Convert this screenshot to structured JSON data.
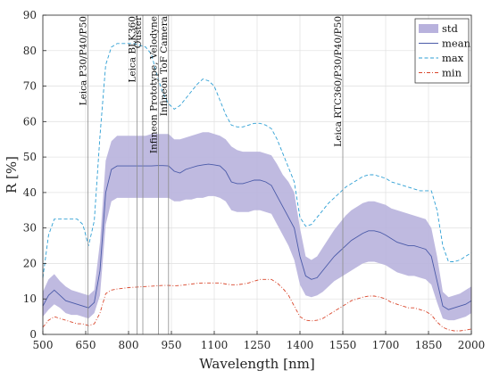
{
  "chart_data": {
    "type": "area",
    "xlabel": "Wavelength [nm]",
    "ylabel": "R [%]",
    "xlim": [
      500,
      2000
    ],
    "ylim": [
      0,
      90
    ],
    "xticks": [
      500,
      650,
      800,
      950,
      1100,
      1250,
      1400,
      1550,
      1700,
      1850,
      2000
    ],
    "yticks": [
      0,
      10,
      20,
      30,
      40,
      50,
      60,
      70,
      80,
      90
    ],
    "grid": true,
    "legend_position": "top-right",
    "legend": [
      {
        "key": "std",
        "label": "std"
      },
      {
        "key": "mean",
        "label": "mean"
      },
      {
        "key": "max",
        "label": "max"
      },
      {
        "key": "min",
        "label": "min"
      }
    ],
    "colors": {
      "std_fill": "#b8b2dd",
      "mean": "#4a5aa8",
      "max": "#2e9fd4",
      "min": "#d9452a",
      "marker_line": "#8c8c8c"
    },
    "x": [
      500,
      520,
      540,
      560,
      580,
      600,
      620,
      640,
      660,
      680,
      700,
      720,
      740,
      760,
      780,
      800,
      820,
      840,
      860,
      880,
      900,
      920,
      940,
      960,
      980,
      1000,
      1020,
      1040,
      1060,
      1080,
      1100,
      1120,
      1140,
      1160,
      1180,
      1200,
      1220,
      1240,
      1260,
      1280,
      1300,
      1320,
      1340,
      1360,
      1380,
      1400,
      1420,
      1440,
      1460,
      1480,
      1500,
      1520,
      1540,
      1560,
      1580,
      1600,
      1620,
      1640,
      1660,
      1680,
      1700,
      1720,
      1740,
      1760,
      1780,
      1800,
      1820,
      1840,
      1860,
      1880,
      1900,
      1920,
      1940,
      1960,
      1980,
      2000
    ],
    "series": [
      {
        "name": "mean",
        "values": [
          8,
          11,
          12.5,
          11,
          9.5,
          9,
          8.5,
          8,
          7.5,
          9,
          18,
          40,
          46.5,
          47.5,
          47.5,
          47.5,
          47.5,
          47.5,
          47.5,
          47.5,
          47.6,
          47.6,
          47.5,
          46,
          45.5,
          46.5,
          47,
          47.5,
          47.8,
          48,
          47.8,
          47.5,
          46,
          43,
          42.5,
          42.5,
          43,
          43.5,
          43.5,
          43,
          42,
          39,
          36,
          33,
          30,
          22,
          16.5,
          15.5,
          16,
          18,
          20,
          22,
          23.5,
          25,
          26.5,
          27.5,
          28.5,
          29.2,
          29.2,
          28.8,
          28,
          27,
          26,
          25.5,
          25,
          25,
          24.5,
          24,
          22,
          15,
          8,
          7,
          7.5,
          8,
          8.5,
          9.5
        ]
      },
      {
        "name": "std_upper",
        "values": [
          12,
          15.5,
          17,
          15,
          13.5,
          12.5,
          12,
          11.5,
          11,
          12.5,
          26,
          49,
          54.5,
          56,
          56,
          56,
          56,
          56,
          56,
          56.5,
          56.5,
          56.5,
          56.5,
          55,
          55,
          55.5,
          56,
          56.5,
          57,
          57,
          56.5,
          56,
          55,
          53,
          52,
          51.5,
          51.5,
          51.5,
          51.5,
          51,
          50.5,
          48,
          45,
          43,
          40,
          30,
          22,
          21,
          22,
          24.5,
          27,
          29.5,
          31.5,
          33.5,
          35,
          36,
          37,
          37.5,
          37.5,
          37,
          36.5,
          35.5,
          35,
          34.5,
          34,
          33.5,
          33,
          32.5,
          30,
          22,
          12,
          10.5,
          11,
          11.5,
          12.5,
          13.5
        ]
      },
      {
        "name": "std_lower",
        "values": [
          5,
          7,
          8.5,
          7.5,
          6,
          5.5,
          5.5,
          5,
          4.5,
          6,
          11,
          31,
          37.5,
          38.5,
          38.5,
          38.5,
          38.5,
          38.5,
          38.5,
          38.5,
          38.5,
          38.5,
          38.5,
          37.5,
          37.5,
          38,
          38,
          38.5,
          38.5,
          39,
          39,
          38.5,
          37.5,
          35,
          34.5,
          34.5,
          34.5,
          35,
          35,
          34.5,
          34,
          31,
          28,
          25,
          21,
          14,
          11,
          10.5,
          11,
          12,
          13.5,
          15,
          16,
          17,
          18,
          19,
          20,
          20.5,
          20.5,
          20,
          19.5,
          18.5,
          17.5,
          17,
          16.5,
          16.5,
          16,
          15.5,
          14,
          9,
          4.5,
          4,
          4,
          4.5,
          5,
          6
        ]
      },
      {
        "name": "max",
        "values": [
          16,
          28,
          32.5,
          32.5,
          32.5,
          32.5,
          32.5,
          31,
          25,
          32,
          56,
          76,
          81,
          82,
          82,
          82,
          82,
          81.5,
          81,
          79,
          73,
          68,
          65,
          63.5,
          64.5,
          66.5,
          68.5,
          70.5,
          72,
          71.5,
          70,
          66,
          62,
          59,
          58.5,
          58.5,
          59,
          59.5,
          59.5,
          59,
          58,
          55,
          51,
          47,
          43,
          33,
          30.5,
          31,
          33,
          35,
          37,
          38.5,
          40,
          41.5,
          42.5,
          43.5,
          44.5,
          45,
          45,
          44.5,
          44,
          43,
          42.5,
          42,
          41.5,
          41,
          40.5,
          40.5,
          40.5,
          35,
          25,
          20.5,
          20.5,
          21,
          22,
          23
        ]
      },
      {
        "name": "min",
        "values": [
          2,
          4,
          5,
          4.5,
          4,
          3.5,
          3,
          3,
          2.5,
          3,
          6,
          11.5,
          12.5,
          12.8,
          13,
          13.2,
          13.3,
          13.4,
          13.5,
          13.6,
          13.7,
          13.8,
          13.8,
          13.7,
          13.8,
          14,
          14.2,
          14.4,
          14.5,
          14.5,
          14.5,
          14.5,
          14.2,
          14,
          14,
          14.2,
          14.5,
          15,
          15.5,
          15.5,
          15.5,
          14.5,
          13,
          11,
          8,
          5,
          4,
          3.8,
          4,
          4.5,
          5.5,
          6.5,
          7.5,
          8.5,
          9.5,
          10,
          10.5,
          10.8,
          10.8,
          10.5,
          10,
          9,
          8.5,
          8,
          7.5,
          7.5,
          7,
          6.5,
          5.5,
          3.5,
          2,
          1.3,
          1,
          1,
          1.2,
          1.5
        ]
      }
    ],
    "markers": [
      {
        "x": 658,
        "label": "Leica P30/P40/P50"
      },
      {
        "x": 830,
        "label": "Leica BLK360"
      },
      {
        "x": 850,
        "label": "Ouster"
      },
      {
        "x": 905,
        "label": "Infineon Prototype, Velodyne"
      },
      {
        "x": 940,
        "label": "Infineon ToF Camera"
      },
      {
        "x": 1550,
        "label": "Leica RTC360/P30/P40/P50"
      }
    ]
  }
}
